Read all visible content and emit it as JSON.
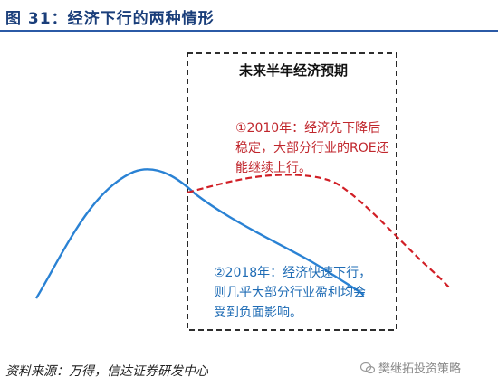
{
  "title": "图 31：经济下行的两种情形",
  "box_title": "未来半年经济预期",
  "note_2010": "①2010年：经济先下降后稳定，大部分行业的ROE还能继续上行。",
  "note_2018": "②2018年：经济快速下行，则几乎大部分行业盈利均会受到负面影响。",
  "source": "资料来源：万得，信达证券研发中心",
  "watermark": "樊继拓投资策略",
  "colors": {
    "blue_curve": "#2a82d4",
    "red_curve": "#d11f26",
    "title": "#1a3e7a"
  }
}
